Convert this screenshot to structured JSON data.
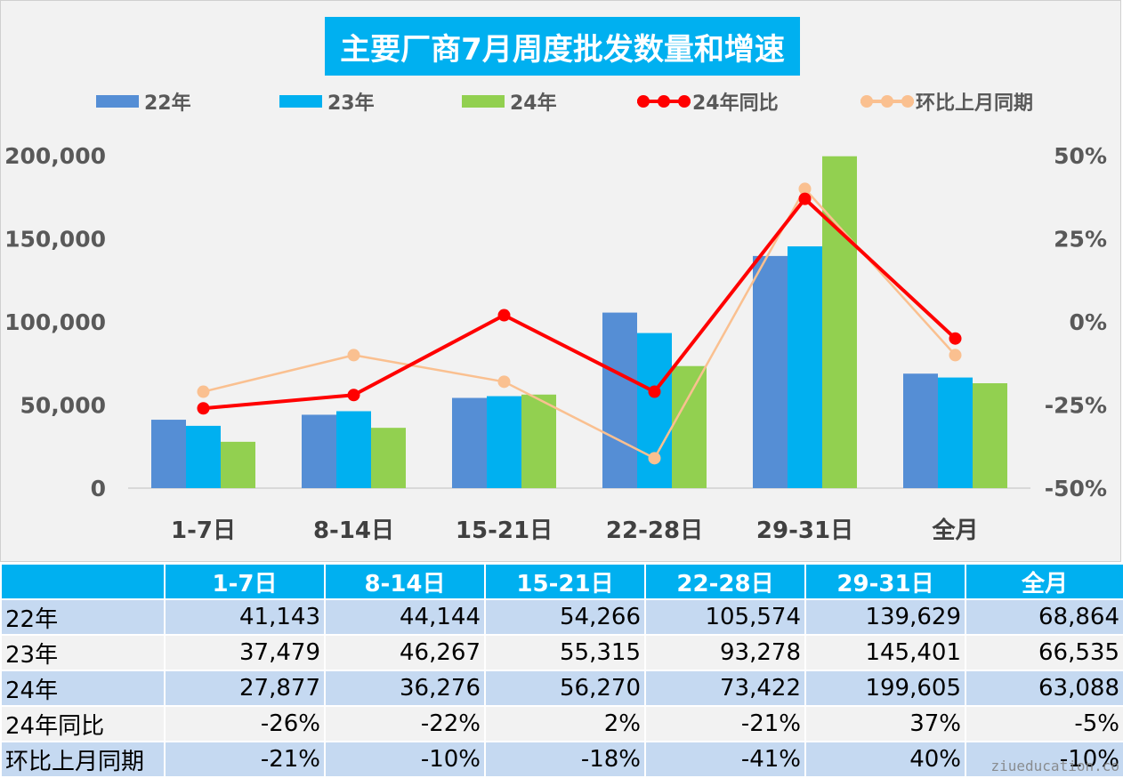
{
  "title": "主要厂商7月周度批发数量和增速",
  "watermark": "ziueducation.co",
  "colors": {
    "y22": "#558ed5",
    "y23": "#00b0f0",
    "y24": "#92d050",
    "yoy": "#ff0000",
    "mom": "#fac090",
    "title_bg": "#00b0f0"
  },
  "chart_data": {
    "type": "bar",
    "title": "主要厂商7月周度批发数量和增速",
    "categories": [
      "1-7日",
      "8-14日",
      "15-21日",
      "22-28日",
      "29-31日",
      "全月"
    ],
    "series": [
      {
        "name": "22年",
        "kind": "bar",
        "axis": "left",
        "values": [
          41143,
          44144,
          54266,
          105574,
          139629,
          68864
        ]
      },
      {
        "name": "23年",
        "kind": "bar",
        "axis": "left",
        "values": [
          37479,
          46267,
          55315,
          93278,
          145401,
          66535
        ]
      },
      {
        "name": "24年",
        "kind": "bar",
        "axis": "left",
        "values": [
          27877,
          36276,
          56270,
          73422,
          199605,
          63088
        ]
      },
      {
        "name": "24年同比",
        "kind": "line",
        "axis": "right",
        "values": [
          -0.26,
          -0.22,
          0.02,
          -0.21,
          0.37,
          -0.05
        ]
      },
      {
        "name": "环比上月同期",
        "kind": "line",
        "axis": "right",
        "values": [
          -0.21,
          -0.1,
          -0.18,
          -0.41,
          0.4,
          -0.1
        ]
      }
    ],
    "y_left": {
      "min": 0,
      "max": 200000,
      "ticks": [
        0,
        50000,
        100000,
        150000,
        200000
      ],
      "tick_labels": [
        "0",
        "50,000",
        "100,000",
        "150,000",
        "200,000"
      ]
    },
    "y_right": {
      "min": -0.5,
      "max": 0.5,
      "ticks": [
        -0.5,
        -0.25,
        0,
        0.25,
        0.5
      ],
      "tick_labels": [
        "-50%",
        "-25%",
        "0%",
        "25%",
        "50%"
      ]
    },
    "grid": false,
    "legend_position": "top"
  },
  "table": {
    "headers": [
      "",
      "1-7日",
      "8-14日",
      "15-21日",
      "22-28日",
      "29-31日",
      "全月"
    ],
    "rows": [
      {
        "label": "22年",
        "cells": [
          "41,143",
          "44,144",
          "54,266",
          "105,574",
          "139,629",
          "68,864"
        ]
      },
      {
        "label": "23年",
        "cells": [
          "37,479",
          "46,267",
          "55,315",
          "93,278",
          "145,401",
          "66,535"
        ]
      },
      {
        "label": "24年",
        "cells": [
          "27,877",
          "36,276",
          "56,270",
          "73,422",
          "199,605",
          "63,088"
        ]
      },
      {
        "label": "24年同比",
        "cells": [
          "-26%",
          "-22%",
          "2%",
          "-21%",
          "37%",
          "-5%"
        ]
      },
      {
        "label": "环比上月同期",
        "cells": [
          "-21%",
          "-10%",
          "-18%",
          "-41%",
          "40%",
          "-10%"
        ]
      }
    ]
  }
}
